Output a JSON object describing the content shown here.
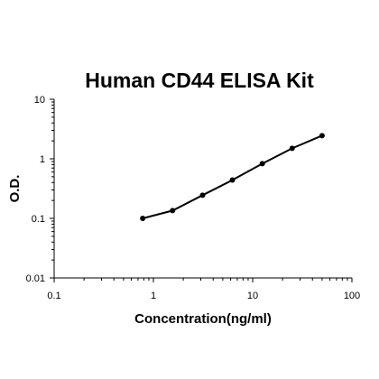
{
  "chart_data": {
    "type": "line",
    "title": "Human CD44 ELISA Kit",
    "xlabel": "Concentration(ng/ml)",
    "ylabel": "O.D.",
    "x_scale": "log",
    "y_scale": "log",
    "xlim": [
      0.1,
      100
    ],
    "ylim": [
      0.01,
      10
    ],
    "x_ticks": [
      "0.1",
      "1",
      "10",
      "100"
    ],
    "y_ticks": [
      "0.01",
      "0.1",
      "1",
      "10"
    ],
    "grid": false,
    "legend": "none",
    "series": [
      {
        "x": [
          0.78,
          1.56,
          3.13,
          6.25,
          12.5,
          25,
          50
        ],
        "y": [
          0.1,
          0.135,
          0.245,
          0.44,
          0.83,
          1.5,
          2.45
        ]
      }
    ],
    "colors": {
      "line": "#000000",
      "marker": "#000000",
      "axis": "#000000"
    }
  }
}
